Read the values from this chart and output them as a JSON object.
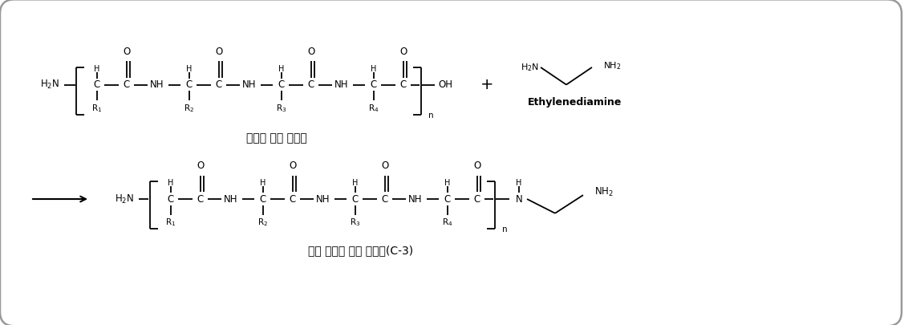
{
  "bg_color": "#ffffff",
  "border_color": "#999999",
  "text_color": "#000000",
  "fig_width": 11.27,
  "fig_height": 4.05,
  "dpi": 100,
  "label_top_korean": "단백질 가수 분해물",
  "label_bottom_korean": "변성 단백질 가수 분해물(C-3)",
  "ethylenediamine_label": "Ethylenediamine"
}
